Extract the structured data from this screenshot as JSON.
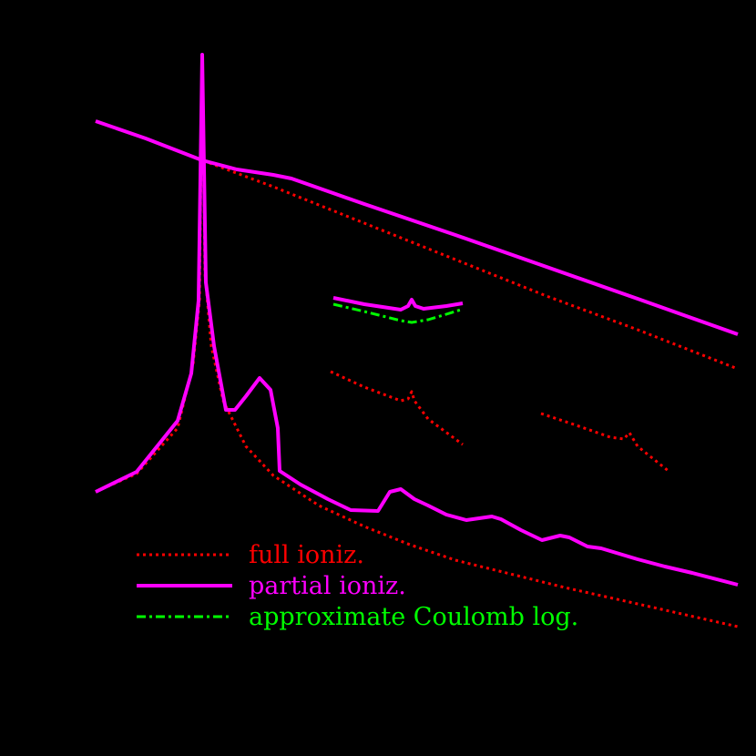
{
  "chart_data": {
    "type": "line",
    "title": "",
    "xlabel": "",
    "ylabel": "",
    "grid": false,
    "axes_visible": false,
    "background": "#000000",
    "legend_position": "lower-left",
    "coordinate_note": "values are in image pixel coordinates (x right, y down); axes not rendered visibly",
    "series": [
      {
        "name": "full ioniz.",
        "color": "#ff0000",
        "style": "dotted",
        "segments": [
          [
            [
              105,
              133
            ],
            [
              160,
              152
            ],
            [
              222,
              176
            ],
            [
              300,
              205
            ],
            [
              400,
              245
            ],
            [
              500,
              285
            ],
            [
              600,
              325
            ],
            [
              700,
              362
            ],
            [
              810,
              405
            ]
          ],
          [
            [
              105,
              540
            ],
            [
              150,
              520
            ],
            [
              195,
              470
            ],
            [
              212,
              400
            ],
            [
              219,
              330
            ],
            [
              222,
              60
            ],
            [
              225,
              300
            ],
            [
              232,
              380
            ],
            [
              245,
              440
            ],
            [
              270,
              490
            ],
            [
              300,
              522
            ],
            [
              350,
              555
            ],
            [
              400,
              578
            ],
            [
              450,
              598
            ],
            [
              500,
              615
            ],
            [
              560,
              630
            ],
            [
              620,
              645
            ],
            [
              700,
              663
            ],
            [
              810,
              688
            ]
          ],
          [
            [
              363,
              408
            ],
            [
              400,
              425
            ],
            [
              440,
              440
            ],
            [
              448,
              438
            ],
            [
              452,
              430
            ],
            [
              455,
              440
            ],
            [
              470,
              460
            ],
            [
              508,
              488
            ]
          ],
          [
            [
              594,
              454
            ],
            [
              630,
              466
            ],
            [
              670,
              480
            ],
            [
              685,
              482
            ],
            [
              691,
              475
            ],
            [
              700,
              490
            ],
            [
              735,
              518
            ]
          ]
        ]
      },
      {
        "name": "partial ioniz.",
        "color": "#ff00ff",
        "style": "solid",
        "segments": [
          [
            [
              105,
              133
            ],
            [
              160,
              152
            ],
            [
              222,
              176
            ],
            [
              260,
              186
            ],
            [
              300,
              192
            ],
            [
              320,
              196
            ],
            [
              360,
              210
            ],
            [
              400,
              224
            ],
            [
              500,
              258
            ],
            [
              600,
              293
            ],
            [
              700,
              328
            ],
            [
              810,
              367
            ]
          ],
          [
            [
              105,
              540
            ],
            [
              150,
              518
            ],
            [
              195,
              462
            ],
            [
              210,
              410
            ],
            [
              218,
              330
            ],
            [
              222,
              60
            ],
            [
              226,
              310
            ],
            [
              235,
              380
            ],
            [
              248,
              450
            ],
            [
              258,
              450
            ],
            [
              270,
              435
            ],
            [
              285,
              415
            ],
            [
              297,
              428
            ],
            [
              305,
              470
            ],
            [
              307,
              517
            ],
            [
              330,
              532
            ],
            [
              360,
              548
            ],
            [
              385,
              560
            ],
            [
              415,
              561
            ],
            [
              428,
              540
            ],
            [
              440,
              537
            ],
            [
              455,
              548
            ],
            [
              470,
              555
            ],
            [
              490,
              565
            ],
            [
              512,
              571
            ],
            [
              540,
              567
            ],
            [
              550,
              570
            ],
            [
              572,
              582
            ],
            [
              595,
              593
            ],
            [
              615,
              588
            ],
            [
              625,
              590
            ],
            [
              645,
              600
            ],
            [
              660,
              602
            ],
            [
              680,
              608
            ],
            [
              700,
              614
            ],
            [
              730,
              622
            ],
            [
              760,
              629
            ],
            [
              810,
              642
            ]
          ],
          [
            [
              366,
              327
            ],
            [
              400,
              334
            ],
            [
              440,
              340
            ],
            [
              448,
              336
            ],
            [
              452,
              329
            ],
            [
              456,
              336
            ],
            [
              465,
              339
            ],
            [
              490,
              336
            ],
            [
              508,
              333
            ]
          ]
        ]
      },
      {
        "name": "approximate Coulomb log.",
        "color": "#00ff00",
        "style": "dashdot",
        "segments": [
          [
            [
              366,
              334
            ],
            [
              400,
              342
            ],
            [
              440,
              352
            ],
            [
              452,
              354
            ],
            [
              470,
              351
            ],
            [
              490,
              345
            ],
            [
              506,
              340
            ]
          ]
        ]
      }
    ],
    "legend": [
      {
        "label": "full ioniz.",
        "color": "#ff0000",
        "style": "dotted"
      },
      {
        "label": "partial ioniz.",
        "color": "#ff00ff",
        "style": "solid"
      },
      {
        "label": "approximate Coulomb log.",
        "color": "#00ff00",
        "style": "dashdot"
      }
    ]
  },
  "legend": {
    "items": [
      {
        "label": "full ioniz.",
        "color": "#ff0000"
      },
      {
        "label": "partial ioniz.",
        "color": "#ff00ff"
      },
      {
        "label": "approximate Coulomb log.",
        "color": "#00ff00"
      }
    ]
  }
}
